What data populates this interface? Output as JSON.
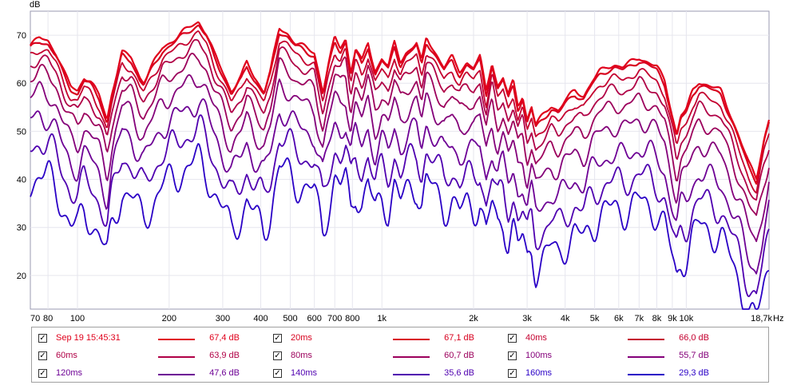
{
  "chart_data": {
    "type": "line",
    "ylabel": "dB",
    "xunit": "Hz",
    "x_scale": "log",
    "xlim": [
      70,
      18700
    ],
    "ylim": [
      13,
      75
    ],
    "y_ticks": [
      20,
      30,
      40,
      50,
      60,
      70
    ],
    "x_ticks": [
      {
        "value": 70,
        "label": "70"
      },
      {
        "value": 80,
        "label": "80"
      },
      {
        "value": 100,
        "label": "100"
      },
      {
        "value": 200,
        "label": "200"
      },
      {
        "value": 300,
        "label": "300"
      },
      {
        "value": 400,
        "label": "400"
      },
      {
        "value": 500,
        "label": "500"
      },
      {
        "value": 600,
        "label": "600"
      },
      {
        "value": 700,
        "label": "700"
      },
      {
        "value": 800,
        "label": "800"
      },
      {
        "value": 1000,
        "label": "1k"
      },
      {
        "value": 2000,
        "label": "2k"
      },
      {
        "value": 3000,
        "label": "3k"
      },
      {
        "value": 4000,
        "label": "4k"
      },
      {
        "value": 5000,
        "label": "5k"
      },
      {
        "value": 6000,
        "label": "6k"
      },
      {
        "value": 7000,
        "label": "7k"
      },
      {
        "value": 8000,
        "label": "8k"
      },
      {
        "value": 9000,
        "label": "9k"
      },
      {
        "value": 10000,
        "label": "10k"
      },
      {
        "value": 18700,
        "label": "18,7k"
      }
    ],
    "grid": true,
    "legend_position": "bottom",
    "base_curve": [
      [
        70,
        67.5
      ],
      [
        75,
        69
      ],
      [
        80,
        68.5
      ],
      [
        85,
        66
      ],
      [
        90,
        62
      ],
      [
        95,
        59
      ],
      [
        100,
        58
      ],
      [
        105,
        61
      ],
      [
        110,
        60
      ],
      [
        118,
        57
      ],
      [
        125,
        52
      ],
      [
        130,
        58
      ],
      [
        140,
        66
      ],
      [
        150,
        65
      ],
      [
        160,
        61
      ],
      [
        165,
        60
      ],
      [
        175,
        63
      ],
      [
        190,
        67
      ],
      [
        210,
        69
      ],
      [
        230,
        71
      ],
      [
        250,
        72.5
      ],
      [
        265,
        70
      ],
      [
        280,
        66
      ],
      [
        300,
        62
      ],
      [
        320,
        58
      ],
      [
        345,
        61
      ],
      [
        360,
        64
      ],
      [
        380,
        61
      ],
      [
        410,
        58
      ],
      [
        430,
        62
      ],
      [
        460,
        71
      ],
      [
        490,
        70
      ],
      [
        520,
        68
      ],
      [
        560,
        67
      ],
      [
        600,
        66
      ],
      [
        640,
        58
      ],
      [
        670,
        64
      ],
      [
        700,
        69
      ],
      [
        730,
        67
      ],
      [
        760,
        69
      ],
      [
        790,
        62
      ],
      [
        820,
        67
      ],
      [
        860,
        64
      ],
      [
        900,
        68
      ],
      [
        950,
        62
      ],
      [
        1000,
        65
      ],
      [
        1050,
        63
      ],
      [
        1100,
        68
      ],
      [
        1150,
        64
      ],
      [
        1200,
        66
      ],
      [
        1300,
        68
      ],
      [
        1350,
        64
      ],
      [
        1400,
        69
      ],
      [
        1500,
        66
      ],
      [
        1600,
        63
      ],
      [
        1700,
        65
      ],
      [
        1800,
        62
      ],
      [
        1900,
        64
      ],
      [
        2000,
        63
      ],
      [
        2100,
        65
      ],
      [
        2200,
        58
      ],
      [
        2300,
        64
      ],
      [
        2400,
        59
      ],
      [
        2500,
        61
      ],
      [
        2600,
        57
      ],
      [
        2700,
        60
      ],
      [
        2800,
        55
      ],
      [
        2900,
        57
      ],
      [
        3000,
        52
      ],
      [
        3100,
        55
      ],
      [
        3200,
        51
      ],
      [
        3400,
        53
      ],
      [
        3600,
        55
      ],
      [
        3800,
        54
      ],
      [
        4000,
        56
      ],
      [
        4300,
        58
      ],
      [
        4600,
        57
      ],
      [
        4900,
        60
      ],
      [
        5200,
        62
      ],
      [
        5500,
        63
      ],
      [
        5800,
        63.5
      ],
      [
        6200,
        63
      ],
      [
        6600,
        64
      ],
      [
        7000,
        65
      ],
      [
        7500,
        64
      ],
      [
        8000,
        63
      ],
      [
        8500,
        60
      ],
      [
        9000,
        53
      ],
      [
        9300,
        49
      ],
      [
        9600,
        53
      ],
      [
        10000,
        54
      ],
      [
        10500,
        58
      ],
      [
        11000,
        60
      ],
      [
        12000,
        59
      ],
      [
        13000,
        58
      ],
      [
        14000,
        53
      ],
      [
        15000,
        48
      ],
      [
        16000,
        43
      ],
      [
        17000,
        40
      ],
      [
        18000,
        48
      ],
      [
        18700,
        52
      ]
    ],
    "series": [
      {
        "name": "Sep 19 15:45:31",
        "value_label": "67,4 dB",
        "color": "#e0001b",
        "offset_hi": 0.4,
        "offset_lo": 0.4,
        "noise": 0.4
      },
      {
        "name": "20ms",
        "value_label": "67,1 dB",
        "color": "#d8001e",
        "offset_hi": -0.3,
        "offset_lo": -0.3,
        "noise": 0.4
      },
      {
        "name": "40ms",
        "value_label": "66,0 dB",
        "color": "#c4002f",
        "offset_hi": -1.8,
        "offset_lo": -2.5,
        "noise": 0.6
      },
      {
        "name": "60ms",
        "value_label": "63,9 dB",
        "color": "#b00046",
        "offset_hi": -3.8,
        "offset_lo": -5.0,
        "noise": 0.8
      },
      {
        "name": "80ms",
        "value_label": "60,7 dB",
        "color": "#9c005c",
        "offset_hi": -6.5,
        "offset_lo": -8.5,
        "noise": 1.0
      },
      {
        "name": "100ms",
        "value_label": "55,7 dB",
        "color": "#84007a",
        "offset_hi": -10.5,
        "offset_lo": -13.0,
        "noise": 1.4
      },
      {
        "name": "120ms",
        "value_label": "47,6 dB",
        "color": "#6d0095",
        "offset_hi": -15.5,
        "offset_lo": -19.0,
        "noise": 1.8
      },
      {
        "name": "140ms",
        "value_label": "35,6 dB",
        "color": "#4f00b0",
        "offset_hi": -21.0,
        "offset_lo": -24.5,
        "noise": 2.2
      },
      {
        "name": "160ms",
        "value_label": "29,3 dB",
        "color": "#2a00c6",
        "offset_hi": -28.0,
        "offset_lo": -30.0,
        "noise": 2.6
      }
    ]
  }
}
